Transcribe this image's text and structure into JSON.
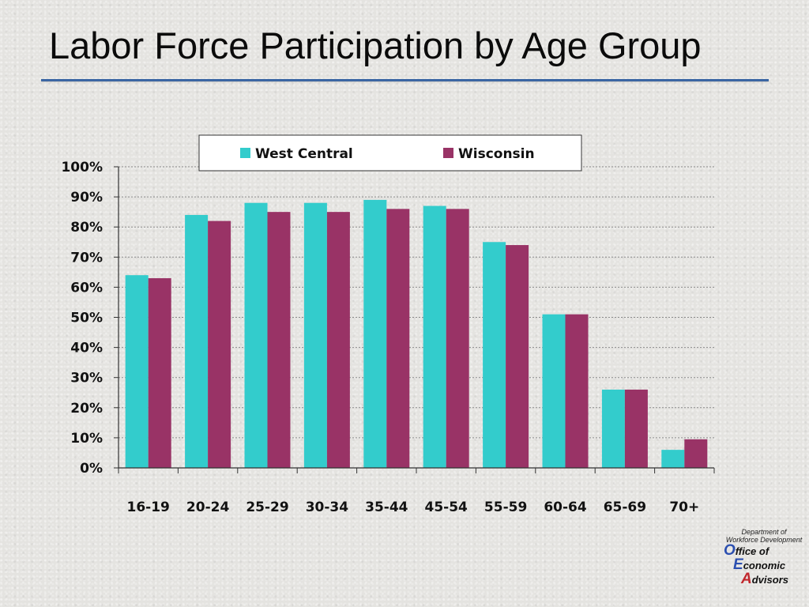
{
  "slide": {
    "title": "Labor Force Participation by Age Group"
  },
  "logo": {
    "dept_line1": "Department of",
    "dept_line2": "Workforce Development",
    "rows": [
      {
        "initial": "O",
        "rest": "ffice of"
      },
      {
        "initial": "E",
        "rest": "conomic"
      },
      {
        "initial": "A",
        "rest": "dvisors"
      }
    ]
  },
  "colors": {
    "west_central": "#33cccc",
    "wisconsin": "#993366",
    "title_rule": "#3b66a3"
  },
  "chart_data": {
    "type": "bar",
    "title": "",
    "xlabel": "",
    "ylabel": "",
    "categories": [
      "16-19",
      "20-24",
      "25-29",
      "30-34",
      "35-44",
      "45-54",
      "55-59",
      "60-64",
      "65-69",
      "70+"
    ],
    "series": [
      {
        "name": "West Central",
        "color": "#33cccc",
        "values": [
          64,
          84,
          88,
          88,
          89,
          87,
          75,
          51,
          26,
          6
        ]
      },
      {
        "name": "Wisconsin",
        "color": "#993366",
        "values": [
          63,
          82,
          85,
          85,
          86,
          86,
          74,
          51,
          26,
          9.5
        ]
      }
    ],
    "ylim": [
      0,
      100
    ],
    "yticks": [
      "0%",
      "10%",
      "20%",
      "30%",
      "40%",
      "50%",
      "60%",
      "70%",
      "80%",
      "90%",
      "100%"
    ],
    "grid": true,
    "legend_position": "top"
  }
}
